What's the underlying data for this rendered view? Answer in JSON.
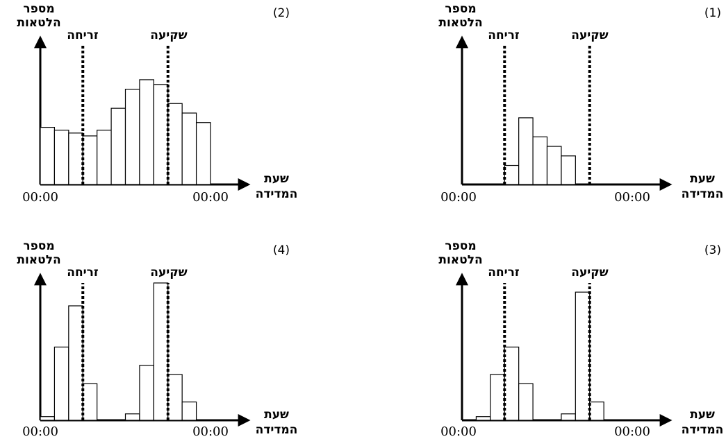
{
  "labels": {
    "y_axis_line1": "מספר",
    "y_axis_line2": "הלטאות",
    "x_axis_line1": "שעת",
    "x_axis_line2": "המדידה",
    "sunrise": "זריחה",
    "sunset": "שקיעה",
    "x_start": "00:00",
    "x_end": "00:00"
  },
  "chart_data": [
    {
      "type": "bar",
      "panel": "(1)",
      "x_range": [
        0,
        24
      ],
      "sunrise": 6,
      "sunset": 18,
      "bin_width": 2,
      "values": [
        0,
        0,
        0,
        2,
        7,
        5,
        4,
        3,
        0,
        0,
        0,
        0
      ],
      "ylim": [
        0,
        15
      ],
      "xlabel": "שעת המדידה",
      "ylabel": "מספר הלטאות"
    },
    {
      "type": "bar",
      "panel": "(2)",
      "x_range": [
        0,
        24
      ],
      "sunrise": 6,
      "sunset": 18,
      "bin_width": 2,
      "values": [
        6,
        5.7,
        5.4,
        5.1,
        5.7,
        8,
        10,
        11,
        10.5,
        8.5,
        7.5,
        6.5
      ],
      "ylim": [
        0,
        15
      ],
      "xlabel": "שעת המדידה",
      "ylabel": "מספר הלטאות"
    },
    {
      "type": "bar",
      "panel": "(3)",
      "x_range": [
        0,
        24
      ],
      "sunrise": 6,
      "sunset": 18,
      "bin_width": 2,
      "values": [
        0,
        0.4,
        5,
        8,
        4,
        0,
        0,
        0.7,
        14,
        2,
        0,
        0
      ],
      "ylim": [
        0,
        15
      ],
      "xlabel": "שעת המדידה",
      "ylabel": "מספר הלטאות"
    },
    {
      "type": "bar",
      "panel": "(4)",
      "x_range": [
        0,
        24
      ],
      "sunrise": 6,
      "sunset": 18,
      "bin_width": 2,
      "values": [
        0.4,
        8,
        12.5,
        4,
        0,
        0,
        0.7,
        6,
        15,
        5,
        2,
        0
      ],
      "ylim": [
        0,
        15
      ],
      "xlabel": "שעת המדידה",
      "ylabel": "מספר הלטאות"
    }
  ]
}
